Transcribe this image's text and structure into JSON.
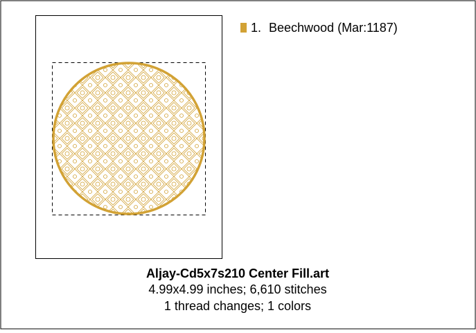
{
  "design": {
    "threads": [
      {
        "number": "1.",
        "name": "Beechwood (Mar:1187)",
        "color": "#d2a235"
      }
    ],
    "title": "Aljay-Cd5x7s210 Center Fill.art",
    "info": [
      "4.99x4.99 inches; 6,610 stitches",
      "1 thread changes; 1 colors"
    ]
  }
}
